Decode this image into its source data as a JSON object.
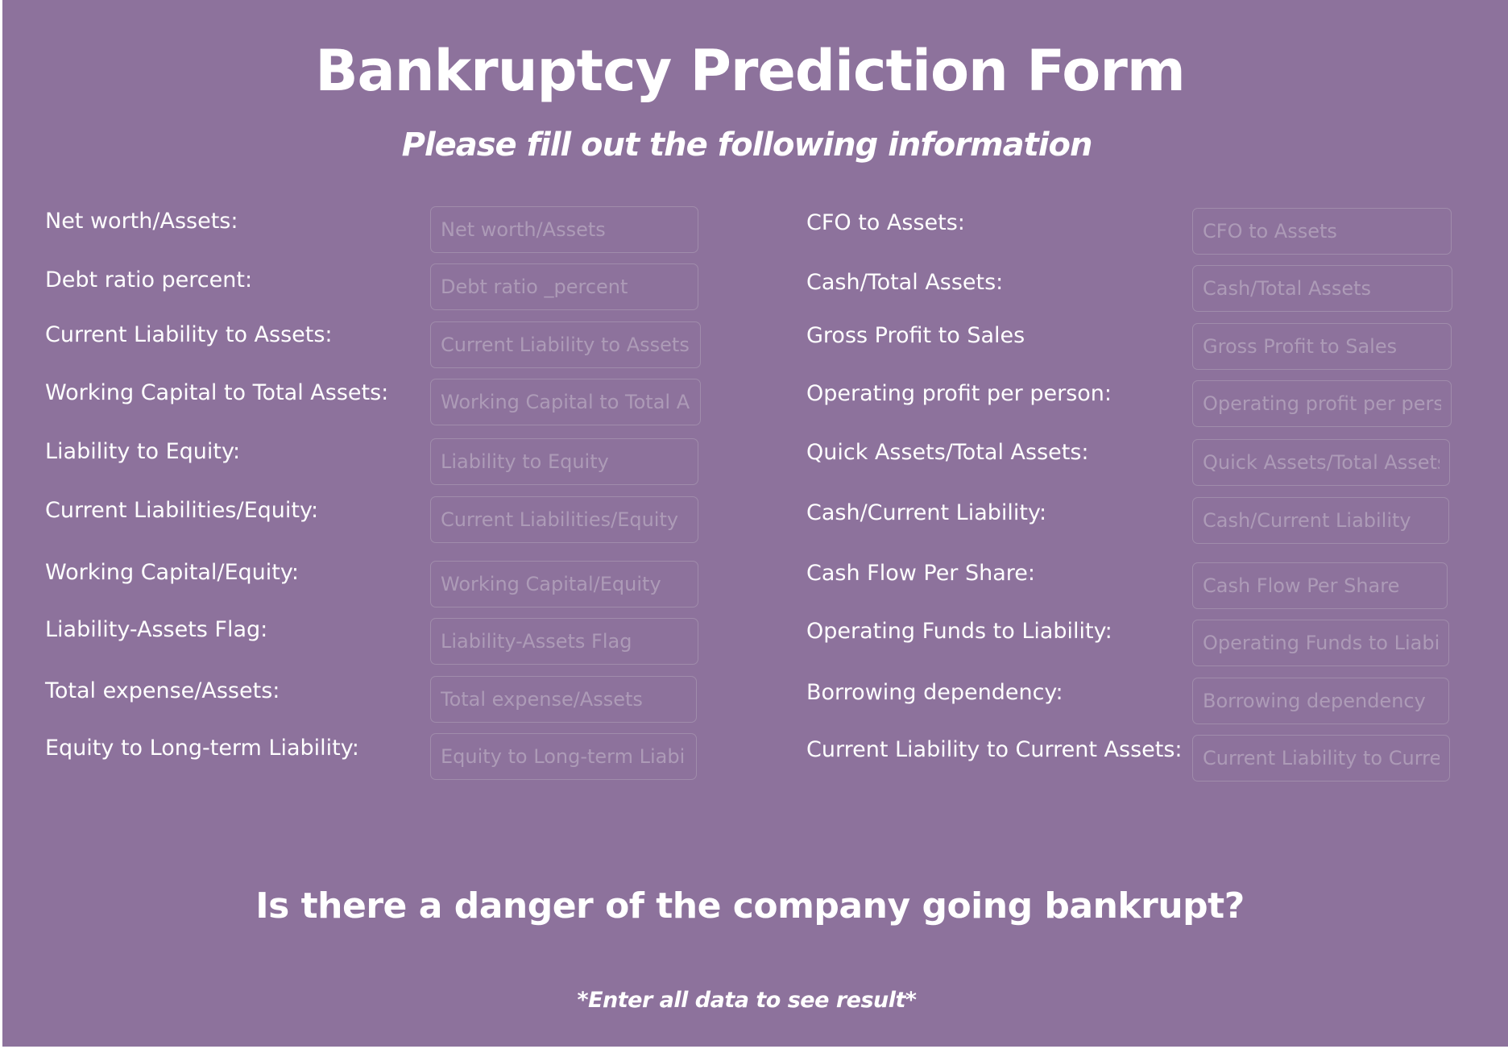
{
  "header": {
    "title": "Bankruptcy Prediction Form",
    "subtitle": "Please fill out the following information"
  },
  "form": {
    "left_fields": [
      {
        "label": "Net worth/Assets:",
        "placeholder": "Net worth/Assets",
        "value": ""
      },
      {
        "label": "Debt ratio percent:",
        "placeholder": "Debt ratio _percent",
        "value": ""
      },
      {
        "label": "Current Liability to Assets:",
        "placeholder": "Current Liability to Assets",
        "value": ""
      },
      {
        "label": "Working Capital to Total Assets:",
        "placeholder": "Working Capital to Total Assets",
        "value": ""
      },
      {
        "label": "Liability to Equity:",
        "placeholder": "Liability to Equity",
        "value": ""
      },
      {
        "label": "Current Liabilities/Equity:",
        "placeholder": "Current Liabilities/Equity",
        "value": ""
      },
      {
        "label": "Working Capital/Equity:",
        "placeholder": "Working Capital/Equity",
        "value": ""
      },
      {
        "label": "Liability-Assets Flag:",
        "placeholder": "Liability-Assets Flag",
        "value": ""
      },
      {
        "label": "Total expense/Assets:",
        "placeholder": "Total expense/Assets",
        "value": ""
      },
      {
        "label": "Equity to Long-term Liability:",
        "placeholder": "Equity to Long-term Liability",
        "value": ""
      }
    ],
    "right_fields": [
      {
        "label": "CFO to Assets:",
        "placeholder": "CFO to Assets",
        "value": ""
      },
      {
        "label": "Cash/Total Assets:",
        "placeholder": "Cash/Total Assets",
        "value": ""
      },
      {
        "label": "Gross Profit to Sales",
        "placeholder": "Gross Profit to Sales",
        "value": ""
      },
      {
        "label": "Operating profit per person:",
        "placeholder": "Operating profit per person",
        "value": ""
      },
      {
        "label": "Quick Assets/Total Assets:",
        "placeholder": "Quick Assets/Total Assets",
        "value": ""
      },
      {
        "label": "Cash/Current Liability:",
        "placeholder": "Cash/Current Liability",
        "value": ""
      },
      {
        "label": "Cash Flow Per Share:",
        "placeholder": "Cash Flow Per Share",
        "value": ""
      },
      {
        "label": "Operating Funds to Liability:",
        "placeholder": "Operating Funds to Liability",
        "value": ""
      },
      {
        "label": "Borrowing dependency:",
        "placeholder": "Borrowing dependency",
        "value": ""
      },
      {
        "label": "Current Liability to Current Assets:",
        "placeholder": "Current Liability to Current Assets",
        "value": ""
      }
    ]
  },
  "result": {
    "question": "Is there a danger of the company going bankrupt?",
    "note": "*Enter all data to see result*"
  },
  "colors": {
    "background": "#8d729c",
    "text": "#ffffff",
    "field_border": "#a08cab",
    "placeholder": "#ad9bb7"
  }
}
